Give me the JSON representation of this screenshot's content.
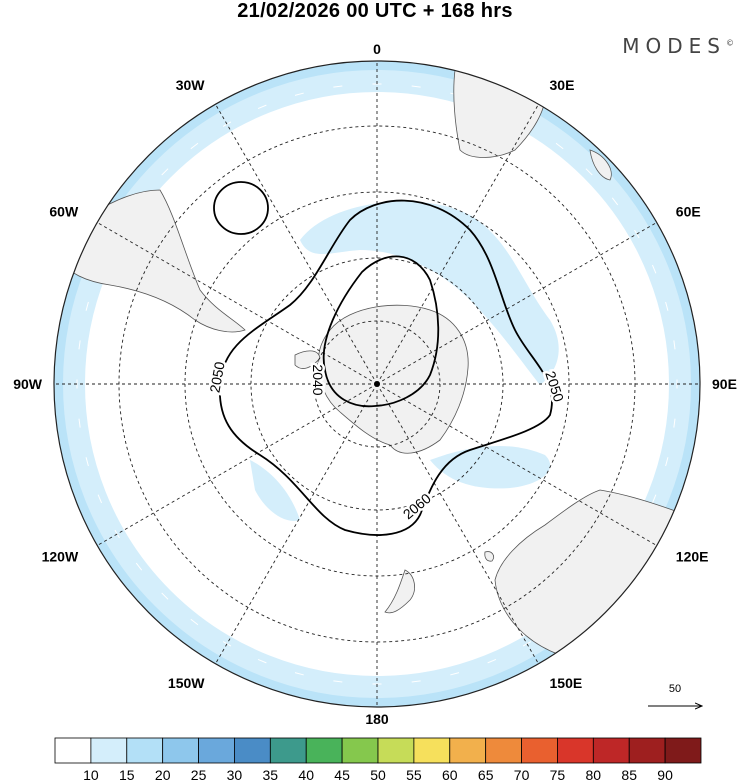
{
  "header": {
    "title": "21/02/2026  00 UTC  + 168 hrs",
    "brand": "MODES",
    "brand_mark": "©"
  },
  "map": {
    "projection": "south-polar-stereographic",
    "longitude_labels": [
      {
        "name": "lon-0",
        "text": "0",
        "lon": 0
      },
      {
        "name": "lon-30e",
        "text": "30E",
        "lon": 30
      },
      {
        "name": "lon-60e",
        "text": "60E",
        "lon": 60
      },
      {
        "name": "lon-90e",
        "text": "90E",
        "lon": 90
      },
      {
        "name": "lon-120e",
        "text": "120E",
        "lon": 120
      },
      {
        "name": "lon-150e",
        "text": "150E",
        "lon": 150
      },
      {
        "name": "lon-180",
        "text": "180",
        "lon": 180
      },
      {
        "name": "lon-150w",
        "text": "150W",
        "lon": -150
      },
      {
        "name": "lon-120w",
        "text": "120W",
        "lon": -120
      },
      {
        "name": "lon-90w",
        "text": "90W",
        "lon": -90
      },
      {
        "name": "lon-60w",
        "text": "60W",
        "lon": -60
      },
      {
        "name": "lon-30w",
        "text": "30W",
        "lon": -30
      }
    ],
    "contour_labels": [
      {
        "name": "contour-label-2050-west",
        "text": "2050"
      },
      {
        "name": "contour-label-2040",
        "text": "2040"
      },
      {
        "name": "contour-label-2050-east",
        "text": "2050"
      },
      {
        "name": "contour-label-2060",
        "text": "2060"
      }
    ],
    "reference_vector": "50"
  },
  "colorbar": {
    "ticks": [
      "10",
      "15",
      "20",
      "25",
      "30",
      "35",
      "40",
      "45",
      "50",
      "55",
      "60",
      "65",
      "70",
      "75",
      "80",
      "85",
      "90"
    ],
    "colors": [
      "#ffffff",
      "#d4eefb",
      "#b3e0f7",
      "#8ec7ec",
      "#6aa8dc",
      "#4a8cc6",
      "#3d9a8c",
      "#49b35a",
      "#85c84d",
      "#c6dc58",
      "#f6e05c",
      "#f2b04c",
      "#ee8a3b",
      "#e9602f",
      "#d9362a",
      "#be2727",
      "#9e1f1f",
      "#7f1a1a"
    ]
  }
}
